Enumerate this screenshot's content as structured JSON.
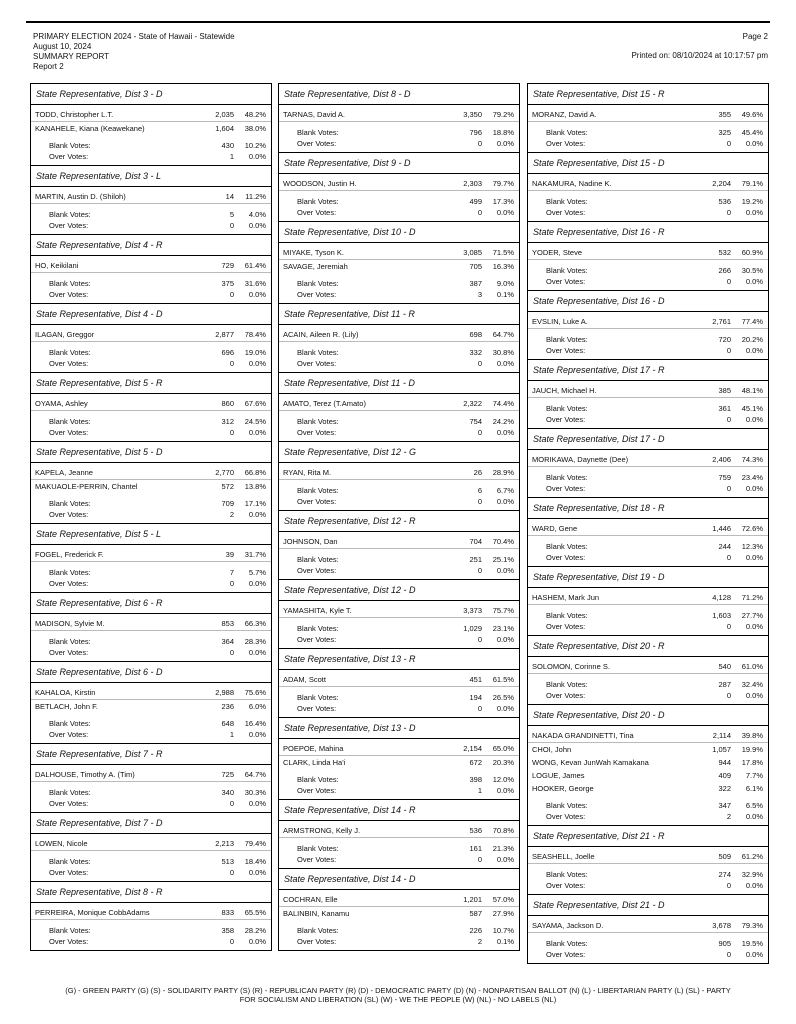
{
  "header": {
    "lines": [
      "PRIMARY ELECTION 2024 - State of Hawaii - Statewide",
      "August 10, 2024",
      "SUMMARY REPORT",
      "Report 2"
    ],
    "page": "Page 2",
    "printed": "Printed on: 08/10/2024 at 10:17:57 pm"
  },
  "labels": {
    "blank": "Blank Votes:",
    "over": "Over Votes:"
  },
  "columns": [
    {
      "races": [
        {
          "title": "State Representative, Dist 3 - D",
          "candidates": [
            [
              "TODD, Christopher L.T.",
              "2,035",
              "48.2%"
            ],
            [
              "KANAHELE, Kiana (Keawekane)",
              "1,604",
              "38.0%"
            ]
          ],
          "blank": [
            "430",
            "10.2%"
          ],
          "over": [
            "1",
            "0.0%"
          ]
        },
        {
          "title": "State Representative, Dist 3 - L",
          "candidates": [
            [
              "MARTIN, Austin D. (Shiloh)",
              "14",
              "11.2%"
            ]
          ],
          "blank": [
            "5",
            "4.0%"
          ],
          "over": [
            "0",
            "0.0%"
          ]
        },
        {
          "title": "State Representative, Dist 4 - R",
          "candidates": [
            [
              "HO, Keikilani",
              "729",
              "61.4%"
            ]
          ],
          "blank": [
            "375",
            "31.6%"
          ],
          "over": [
            "0",
            "0.0%"
          ]
        },
        {
          "title": "State Representative, Dist 4 - D",
          "candidates": [
            [
              "ILAGAN, Greggor",
              "2,877",
              "78.4%"
            ]
          ],
          "blank": [
            "696",
            "19.0%"
          ],
          "over": [
            "0",
            "0.0%"
          ]
        },
        {
          "title": "State Representative, Dist 5 - R",
          "candidates": [
            [
              "OYAMA, Ashley",
              "860",
              "67.6%"
            ]
          ],
          "blank": [
            "312",
            "24.5%"
          ],
          "over": [
            "0",
            "0.0%"
          ]
        },
        {
          "title": "State Representative, Dist 5 - D",
          "candidates": [
            [
              "KAPELA, Jeanne",
              "2,770",
              "66.8%"
            ],
            [
              "MAKUAOLE-PERRIN, Chantel",
              "572",
              "13.8%"
            ]
          ],
          "blank": [
            "709",
            "17.1%"
          ],
          "over": [
            "2",
            "0.0%"
          ]
        },
        {
          "title": "State Representative, Dist 5 - L",
          "candidates": [
            [
              "FOGEL, Frederick F.",
              "39",
              "31.7%"
            ]
          ],
          "blank": [
            "7",
            "5.7%"
          ],
          "over": [
            "0",
            "0.0%"
          ]
        },
        {
          "title": "State Representative, Dist 6 - R",
          "candidates": [
            [
              "MADISON, Sylvie M.",
              "853",
              "66.3%"
            ]
          ],
          "blank": [
            "364",
            "28.3%"
          ],
          "over": [
            "0",
            "0.0%"
          ]
        },
        {
          "title": "State Representative, Dist 6 - D",
          "candidates": [
            [
              "KAHALOA, Kirstin",
              "2,988",
              "75.6%"
            ],
            [
              "BETLACH, John F.",
              "236",
              "6.0%"
            ]
          ],
          "blank": [
            "648",
            "16.4%"
          ],
          "over": [
            "1",
            "0.0%"
          ]
        },
        {
          "title": "State Representative, Dist 7 - R",
          "candidates": [
            [
              "DALHOUSE, Timothy A. (Tim)",
              "725",
              "64.7%"
            ]
          ],
          "blank": [
            "340",
            "30.3%"
          ],
          "over": [
            "0",
            "0.0%"
          ]
        },
        {
          "title": "State Representative, Dist 7 - D",
          "candidates": [
            [
              "LOWEN, Nicole",
              "2,213",
              "79.4%"
            ]
          ],
          "blank": [
            "513",
            "18.4%"
          ],
          "over": [
            "0",
            "0.0%"
          ]
        },
        {
          "title": "State Representative, Dist 8 - R",
          "candidates": [
            [
              "PERREIRA, Monique CobbAdams",
              "833",
              "65.5%"
            ]
          ],
          "blank": [
            "358",
            "28.2%"
          ],
          "over": [
            "0",
            "0.0%"
          ]
        }
      ]
    },
    {
      "races": [
        {
          "title": "State Representative, Dist 8 - D",
          "candidates": [
            [
              "TARNAS, David A.",
              "3,350",
              "79.2%"
            ]
          ],
          "blank": [
            "796",
            "18.8%"
          ],
          "over": [
            "0",
            "0.0%"
          ]
        },
        {
          "title": "State Representative, Dist 9 - D",
          "candidates": [
            [
              "WOODSON, Justin H.",
              "2,303",
              "79.7%"
            ]
          ],
          "blank": [
            "499",
            "17.3%"
          ],
          "over": [
            "0",
            "0.0%"
          ]
        },
        {
          "title": "State Representative, Dist 10 - D",
          "candidates": [
            [
              "MIYAKE, Tyson K.",
              "3,085",
              "71.5%"
            ],
            [
              "SAVAGE, Jeremiah",
              "705",
              "16.3%"
            ]
          ],
          "blank": [
            "387",
            "9.0%"
          ],
          "over": [
            "3",
            "0.1%"
          ]
        },
        {
          "title": "State Representative, Dist 11 - R",
          "candidates": [
            [
              "ACAIN, Aileen R. (Lily)",
              "698",
              "64.7%"
            ]
          ],
          "blank": [
            "332",
            "30.8%"
          ],
          "over": [
            "0",
            "0.0%"
          ]
        },
        {
          "title": "State Representative, Dist 11 - D",
          "candidates": [
            [
              "AMATO, Terez (T.Amato)",
              "2,322",
              "74.4%"
            ]
          ],
          "blank": [
            "754",
            "24.2%"
          ],
          "over": [
            "0",
            "0.0%"
          ]
        },
        {
          "title": "State Representative, Dist 12 - G",
          "candidates": [
            [
              "RYAN, Rita M.",
              "26",
              "28.9%"
            ]
          ],
          "blank": [
            "6",
            "6.7%"
          ],
          "over": [
            "0",
            "0.0%"
          ]
        },
        {
          "title": "State Representative, Dist 12 - R",
          "candidates": [
            [
              "JOHNSON, Dan",
              "704",
              "70.4%"
            ]
          ],
          "blank": [
            "251",
            "25.1%"
          ],
          "over": [
            "0",
            "0.0%"
          ]
        },
        {
          "title": "State Representative, Dist 12 - D",
          "candidates": [
            [
              "YAMASHITA, Kyle T.",
              "3,373",
              "75.7%"
            ]
          ],
          "blank": [
            "1,029",
            "23.1%"
          ],
          "over": [
            "0",
            "0.0%"
          ]
        },
        {
          "title": "State Representative, Dist 13 - R",
          "candidates": [
            [
              "ADAM, Scott",
              "451",
              "61.5%"
            ]
          ],
          "blank": [
            "194",
            "26.5%"
          ],
          "over": [
            "0",
            "0.0%"
          ]
        },
        {
          "title": "State Representative, Dist 13 - D",
          "candidates": [
            [
              "POEPOE, Mahina",
              "2,154",
              "65.0%"
            ],
            [
              "CLARK, Linda Ha'i",
              "672",
              "20.3%"
            ]
          ],
          "blank": [
            "398",
            "12.0%"
          ],
          "over": [
            "1",
            "0.0%"
          ]
        },
        {
          "title": "State Representative, Dist 14 - R",
          "candidates": [
            [
              "ARMSTRONG, Kelly J.",
              "536",
              "70.8%"
            ]
          ],
          "blank": [
            "161",
            "21.3%"
          ],
          "over": [
            "0",
            "0.0%"
          ]
        },
        {
          "title": "State Representative, Dist 14 - D",
          "candidates": [
            [
              "COCHRAN, Elle",
              "1,201",
              "57.0%"
            ],
            [
              "BALINBIN, Kanamu",
              "587",
              "27.9%"
            ]
          ],
          "blank": [
            "226",
            "10.7%"
          ],
          "over": [
            "2",
            "0.1%"
          ]
        }
      ]
    },
    {
      "races": [
        {
          "title": "State Representative, Dist 15 - R",
          "candidates": [
            [
              "MORANZ, David A.",
              "355",
              "49.6%"
            ]
          ],
          "blank": [
            "325",
            "45.4%"
          ],
          "over": [
            "0",
            "0.0%"
          ]
        },
        {
          "title": "State Representative, Dist 15 - D",
          "candidates": [
            [
              "NAKAMURA, Nadine K.",
              "2,204",
              "79.1%"
            ]
          ],
          "blank": [
            "536",
            "19.2%"
          ],
          "over": [
            "0",
            "0.0%"
          ]
        },
        {
          "title": "State Representative, Dist 16 - R",
          "candidates": [
            [
              "YODER, Steve",
              "532",
              "60.9%"
            ]
          ],
          "blank": [
            "266",
            "30.5%"
          ],
          "over": [
            "0",
            "0.0%"
          ]
        },
        {
          "title": "State Representative, Dist 16 - D",
          "candidates": [
            [
              "EVSLIN, Luke A.",
              "2,761",
              "77.4%"
            ]
          ],
          "blank": [
            "720",
            "20.2%"
          ],
          "over": [
            "0",
            "0.0%"
          ]
        },
        {
          "title": "State Representative, Dist 17 - R",
          "candidates": [
            [
              "JAUCH, Michael H.",
              "385",
              "48.1%"
            ]
          ],
          "blank": [
            "361",
            "45.1%"
          ],
          "over": [
            "0",
            "0.0%"
          ]
        },
        {
          "title": "State Representative, Dist 17 - D",
          "candidates": [
            [
              "MORIKAWA, Daynette (Dee)",
              "2,406",
              "74.3%"
            ]
          ],
          "blank": [
            "759",
            "23.4%"
          ],
          "over": [
            "0",
            "0.0%"
          ]
        },
        {
          "title": "State Representative, Dist 18 - R",
          "candidates": [
            [
              "WARD, Gene",
              "1,446",
              "72.6%"
            ]
          ],
          "blank": [
            "244",
            "12.3%"
          ],
          "over": [
            "0",
            "0.0%"
          ]
        },
        {
          "title": "State Representative, Dist 19 - D",
          "candidates": [
            [
              "HASHEM, Mark Jun",
              "4,128",
              "71.2%"
            ]
          ],
          "blank": [
            "1,603",
            "27.7%"
          ],
          "over": [
            "0",
            "0.0%"
          ]
        },
        {
          "title": "State Representative, Dist 20 - R",
          "candidates": [
            [
              "SOLOMON, Corinne S.",
              "540",
              "61.0%"
            ]
          ],
          "blank": [
            "287",
            "32.4%"
          ],
          "over": [
            "0",
            "0.0%"
          ]
        },
        {
          "title": "State Representative, Dist 20 - D",
          "candidates": [
            [
              "NAKADA GRANDINETTI, Tina",
              "2,114",
              "39.8%"
            ],
            [
              "CHOI, John",
              "1,057",
              "19.9%"
            ],
            [
              "WONG, Kevan JunWah Kamakana",
              "944",
              "17.8%"
            ],
            [
              "LOGUE, James",
              "409",
              "7.7%"
            ],
            [
              "HOOKER, George",
              "322",
              "6.1%"
            ]
          ],
          "blank": [
            "347",
            "6.5%"
          ],
          "over": [
            "2",
            "0.0%"
          ]
        },
        {
          "title": "State Representative, Dist 21 - R",
          "candidates": [
            [
              "SEASHELL, Joelle",
              "509",
              "61.2%"
            ]
          ],
          "blank": [
            "274",
            "32.9%"
          ],
          "over": [
            "0",
            "0.0%"
          ]
        },
        {
          "title": "State Representative, Dist 21 - D",
          "candidates": [
            [
              "SAYAMA, Jackson D.",
              "3,678",
              "79.3%"
            ]
          ],
          "blank": [
            "905",
            "19.5%"
          ],
          "over": [
            "0",
            "0.0%"
          ]
        }
      ]
    }
  ],
  "footer": [
    "(G) - GREEN PARTY (G)  (S) - SOLIDARITY PARTY (S)  (R) - REPUBLICAN PARTY (R)  (D) - DEMOCRATIC PARTY (D)  (N) - NONPARTISAN BALLOT (N)  (L) - LIBERTARIAN PARTY (L)  (SL) - PARTY",
    "FOR SOCIALISM AND LIBERATION (SL)  (W) - WE THE PEOPLE (W)  (NL) - NO LABELS (NL)"
  ]
}
